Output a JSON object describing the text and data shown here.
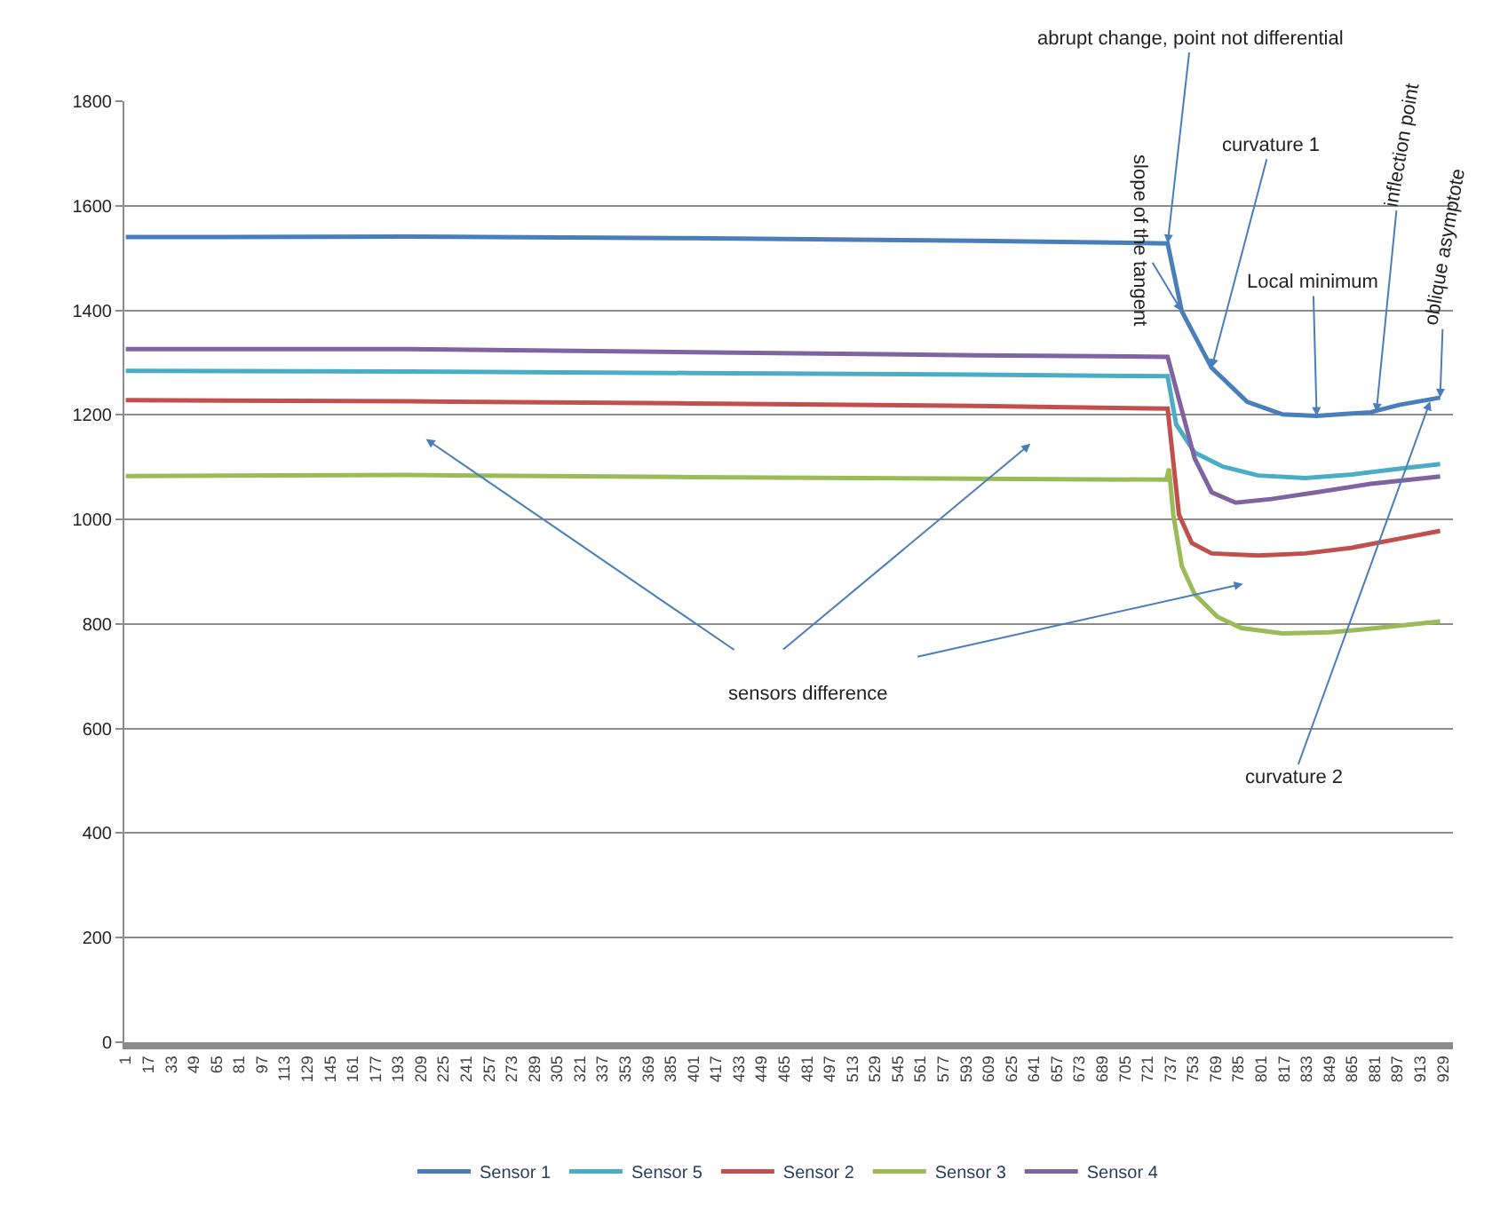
{
  "chart_data": {
    "type": "line",
    "xlim": [
      0,
      936
    ],
    "xticks": [
      1,
      17,
      33,
      49,
      65,
      81,
      97,
      113,
      129,
      145,
      161,
      177,
      193,
      209,
      225,
      241,
      257,
      273,
      289,
      305,
      321,
      337,
      353,
      369,
      385,
      401,
      417,
      433,
      449,
      465,
      481,
      497,
      513,
      529,
      545,
      561,
      577,
      593,
      609,
      625,
      641,
      657,
      673,
      689,
      705,
      721,
      737,
      753,
      769,
      785,
      801,
      817,
      833,
      849,
      865,
      881,
      897,
      913,
      929
    ],
    "ylim": [
      0,
      1800
    ],
    "yticks": [
      0,
      200,
      400,
      600,
      800,
      1000,
      1200,
      1400,
      1600,
      1800
    ],
    "grid": "y",
    "legend": "bottom",
    "marker": "none",
    "line_style": "solid",
    "series": [
      {
        "name": "Sensor 1",
        "color": "#4a7ebb",
        "x": [
          1,
          200,
          400,
          600,
          735,
          745,
          766,
          791,
          816,
          840,
          878,
          898,
          927
        ],
        "values": [
          1540,
          1541,
          1538,
          1533,
          1528,
          1398,
          1290,
          1225,
          1201,
          1198,
          1205,
          1219,
          1233
        ]
      },
      {
        "name": "Sensor 5",
        "color": "#4bacc6",
        "x": [
          1,
          200,
          400,
          600,
          735,
          741,
          754,
          774,
          799,
          832,
          865,
          898,
          927
        ],
        "values": [
          1284,
          1283,
          1280,
          1277,
          1274,
          1182,
          1128,
          1101,
          1084,
          1079,
          1086,
          1097,
          1106
        ]
      },
      {
        "name": "Sensor 2",
        "color": "#c0504d",
        "x": [
          1,
          200,
          400,
          600,
          735,
          743,
          752,
          766,
          799,
          832,
          865,
          898,
          927
        ],
        "values": [
          1228,
          1226,
          1222,
          1217,
          1212,
          1009,
          955,
          935,
          931,
          935,
          946,
          963,
          978
        ]
      },
      {
        "name": "Sensor 3",
        "color": "#9bbb59",
        "x": [
          1,
          200,
          400,
          600,
          734,
          736,
          739,
          745,
          754,
          770,
          787,
          816,
          849,
          882,
          927
        ],
        "values": [
          1083,
          1085,
          1081,
          1078,
          1076,
          1097,
          1009,
          911,
          857,
          814,
          792,
          782,
          784,
          792,
          805
        ]
      },
      {
        "name": "Sensor 4",
        "color": "#8064a2",
        "x": [
          1,
          200,
          400,
          600,
          735,
          754,
          766,
          783,
          808,
          840,
          878,
          927
        ],
        "values": [
          1326,
          1326,
          1320,
          1314,
          1311,
          1117,
          1052,
          1032,
          1039,
          1052,
          1068,
          1082
        ]
      }
    ],
    "annotations": [
      {
        "text": "abrupt change, point not differential",
        "x": 735,
        "y": 1528
      },
      {
        "text": "slope of the tangent",
        "x": 745,
        "y": 1398
      },
      {
        "text": "curvature 1",
        "x": 766,
        "y": 1290
      },
      {
        "text": "Local minimum",
        "x": 840,
        "y": 1198
      },
      {
        "text": "inflection point",
        "x": 882,
        "y": 1205
      },
      {
        "text": "oblique asymptote",
        "x": 927,
        "y": 1233
      },
      {
        "text": "curvature 2",
        "x": 920,
        "y": 1226
      },
      "sensors difference"
    ]
  }
}
